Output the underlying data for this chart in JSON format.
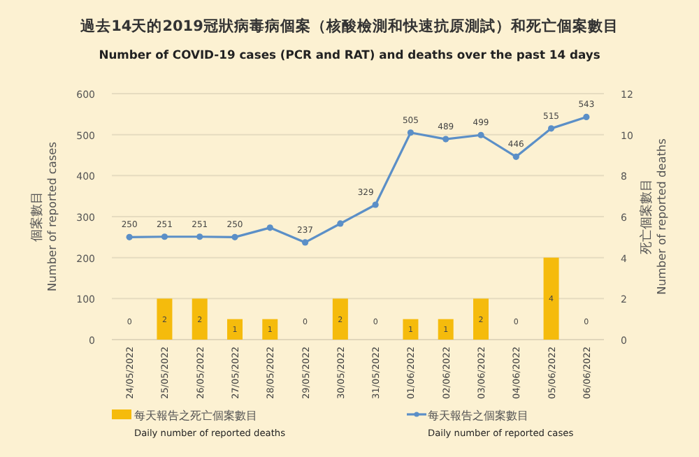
{
  "chart_data": {
    "type": "bar",
    "title": "過去14天的2019冠狀病毒病個案（核酸檢測和快速抗原測試）和死亡個案數目",
    "subtitle": "Number of COVID-19 cases (PCR and RAT) and deaths over the past 14 days",
    "ylabel": "個案數目\nNumber of reported cases",
    "y2label": "死亡個案數目\nNumber of reported deaths",
    "categories": [
      "24/05/2022",
      "25/05/2022",
      "26/05/2022",
      "27/05/2022",
      "28/05/2022",
      "29/05/2022",
      "30/05/2022",
      "31/05/2022",
      "01/06/2022",
      "02/06/2022",
      "03/06/2022",
      "04/06/2022",
      "05/06/2022",
      "06/06/2022"
    ],
    "series": [
      {
        "name": "每天報告之死亡個案數目\nDaily number of reported deaths",
        "axis": "y2",
        "color": "#f5bb0c",
        "values": [
          0,
          2,
          2,
          1,
          1,
          0,
          2,
          0,
          1,
          1,
          2,
          0,
          4,
          0
        ],
        "value_labels": [
          "0",
          "2",
          "2",
          "1",
          "1",
          "0",
          "2",
          "0",
          "1",
          "1",
          "2",
          "0",
          "4",
          "0"
        ]
      },
      {
        "name": "每天報告之個案數目\nDaily number of reported cases",
        "type": "line",
        "axis": "y",
        "color": "#5b8fc7",
        "marker": "circle",
        "values": [
          250,
          251,
          251,
          250,
          273,
          237,
          283,
          329,
          505,
          489,
          499,
          446,
          515,
          543
        ],
        "value_labels": [
          "250",
          "251",
          "251",
          "250",
          null,
          "237",
          null,
          "329",
          "505",
          "489",
          "499",
          "446",
          "515",
          "543"
        ]
      }
    ],
    "ylim": [
      0,
      600
    ],
    "yticks": [
      0,
      100,
      200,
      300,
      400,
      500,
      600
    ],
    "y2lim": [
      0,
      12
    ],
    "y2ticks": [
      0,
      2,
      4,
      6,
      8,
      10,
      12
    ],
    "grid": "y",
    "legend": "bottom"
  }
}
